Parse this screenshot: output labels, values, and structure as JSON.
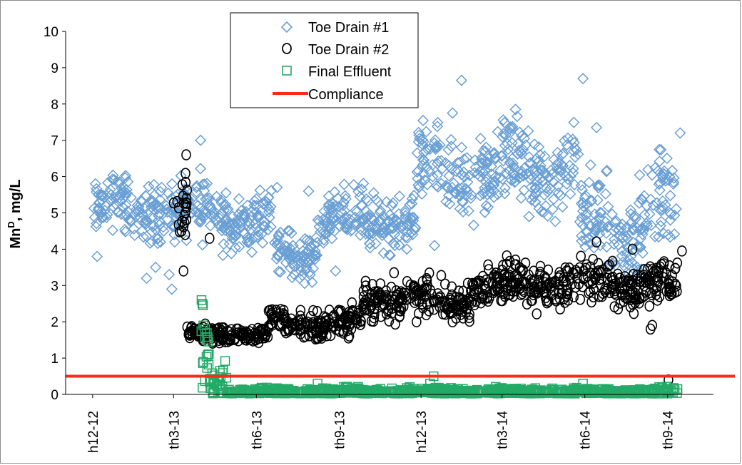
{
  "chart_data": {
    "type": "scatter",
    "title": "",
    "xlabel": "",
    "ylabel": "Mn",
    "ylabel_superscript": "D",
    "ylabel_suffix": ", mg/L",
    "ylim": [
      0,
      10
    ],
    "yticks": [
      0,
      1,
      2,
      3,
      4,
      5,
      6,
      7,
      8,
      9,
      10
    ],
    "x_tick_labels": [
      "1-Dec-12",
      "1-Mar-13",
      "1-Jun-13",
      "1-Sep-13",
      "1-Dec-13",
      "1-Mar-14",
      "1-Jun-14",
      "1-Sep-14"
    ],
    "x_tick_labels_visible": [
      "h12-12",
      "th3-13",
      "th6-13",
      "th9-13",
      "h12-13",
      "th3-14",
      "th6-14",
      "th9-14"
    ],
    "xlim_days_from_first_tick": [
      -30,
      690
    ],
    "legend_position": "top-center",
    "series": [
      {
        "name": "Toe Drain #1",
        "marker": "diamond",
        "color": "#6a9fd4",
        "segments": [
          {
            "start": 0,
            "end": 15,
            "base": 5.05,
            "amp": 0.45,
            "noise": 0.35
          },
          {
            "start": 15,
            "end": 90,
            "base": 5.15,
            "amp": 0.45,
            "noise": 0.38
          },
          {
            "start": 90,
            "end": 150,
            "base": 5.0,
            "amp": 0.55,
            "noise": 0.42
          },
          {
            "start": 150,
            "end": 200,
            "base": 4.8,
            "amp": 0.55,
            "noise": 0.35
          },
          {
            "start": 200,
            "end": 250,
            "base": 3.9,
            "amp": 0.35,
            "noise": 0.3
          },
          {
            "start": 250,
            "end": 360,
            "base": 4.8,
            "amp": 0.45,
            "noise": 0.35
          },
          {
            "start": 360,
            "end": 450,
            "base": 6.0,
            "amp": 0.7,
            "noise": 0.55
          },
          {
            "start": 450,
            "end": 540,
            "base": 6.2,
            "amp": 0.75,
            "noise": 0.55
          },
          {
            "start": 540,
            "end": 600,
            "base": 4.6,
            "amp": 0.8,
            "noise": 0.6
          },
          {
            "start": 600,
            "end": 650,
            "base": 5.0,
            "amp": 0.9,
            "noise": 0.6
          }
        ],
        "outliers": [
          [
            5,
            3.8
          ],
          [
            60,
            3.2
          ],
          [
            70,
            3.5
          ],
          [
            85,
            3.3
          ],
          [
            88,
            2.9
          ],
          [
            120,
            7.0
          ],
          [
            205,
            5.7
          ],
          [
            230,
            3.2
          ],
          [
            240,
            5.6
          ],
          [
            270,
            3.4
          ],
          [
            380,
            4.1
          ],
          [
            400,
            7.75
          ],
          [
            410,
            8.65
          ],
          [
            470,
            7.85
          ],
          [
            485,
            4.9
          ],
          [
            545,
            8.7
          ],
          [
            560,
            7.35
          ],
          [
            610,
            3.45
          ],
          [
            640,
            5.9
          ],
          [
            653,
            7.2
          ]
        ]
      },
      {
        "name": "Toe Drain #2",
        "marker": "circle",
        "color": "#000000",
        "segments": [
          {
            "start": 90,
            "end": 105,
            "base": 5.0,
            "amp": 0.6,
            "noise": 0.45
          },
          {
            "start": 105,
            "end": 195,
            "base": 1.65,
            "amp": 0.12,
            "noise": 0.12
          },
          {
            "start": 195,
            "end": 300,
            "base": 1.95,
            "amp": 0.25,
            "noise": 0.2
          },
          {
            "start": 300,
            "end": 420,
            "base": 2.6,
            "amp": 0.3,
            "noise": 0.25
          },
          {
            "start": 420,
            "end": 540,
            "base": 3.05,
            "amp": 0.3,
            "noise": 0.28
          },
          {
            "start": 540,
            "end": 650,
            "base": 3.0,
            "amp": 0.3,
            "noise": 0.28
          }
        ],
        "outliers": [
          [
            104,
            6.6
          ],
          [
            101,
            3.4
          ],
          [
            130,
            4.3
          ],
          [
            335,
            3.35
          ],
          [
            360,
            2.0
          ],
          [
            400,
            2.0
          ],
          [
            470,
            3.7
          ],
          [
            560,
            4.2
          ],
          [
            600,
            4.0
          ],
          [
            620,
            1.8
          ],
          [
            622,
            1.9
          ],
          [
            640,
            0.4
          ],
          [
            655,
            3.95
          ]
        ]
      },
      {
        "name": "Final Effluent",
        "marker": "square",
        "color": "#22aa66",
        "segments": [
          {
            "start": 120,
            "end": 130,
            "base": 1.2,
            "amp": 0.5,
            "noise": 0.5
          },
          {
            "start": 130,
            "end": 150,
            "base": 0.35,
            "amp": 0.25,
            "noise": 0.25
          },
          {
            "start": 150,
            "end": 650,
            "base": 0.07,
            "amp": 0.05,
            "noise": 0.05
          }
        ],
        "outliers": [
          [
            121,
            2.6
          ],
          [
            122,
            2.5
          ],
          [
            123,
            1.9
          ],
          [
            125,
            1.8
          ],
          [
            250,
            0.3
          ],
          [
            375,
            0.3
          ],
          [
            379,
            0.5
          ],
          [
            545,
            0.3
          ],
          [
            650,
            0.15
          ]
        ]
      },
      {
        "name": "Compliance",
        "marker": "line",
        "color": "#ff2a1a",
        "value": 0.5
      }
    ]
  }
}
